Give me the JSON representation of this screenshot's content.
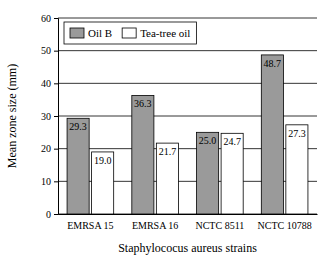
{
  "chart_data": {
    "type": "bar",
    "categories": [
      "EMRSA 15",
      "EMRSA 16",
      "NCTC 8511",
      "NCTC 10788"
    ],
    "series": [
      {
        "name": "Oil B",
        "color": "#9a9a9a",
        "values": [
          29.3,
          36.3,
          25.0,
          48.7
        ],
        "value_labels": [
          "29.3",
          "36.3",
          "25.0",
          "48.7"
        ]
      },
      {
        "name": "Tea-tree oil",
        "color": "#ffffff",
        "values": [
          19.0,
          21.7,
          24.7,
          27.3
        ],
        "value_labels": [
          "19.0",
          "21.7",
          "24.7",
          "27.3"
        ]
      }
    ],
    "y_label": "Mean zone size (mm)",
    "x_label": "Staphylococus aureus strains",
    "ylim": [
      0,
      60
    ],
    "yticks": [
      0,
      10,
      20,
      30,
      40,
      50,
      60
    ],
    "grid": true,
    "legend": "upper left",
    "data_labels": true
  }
}
